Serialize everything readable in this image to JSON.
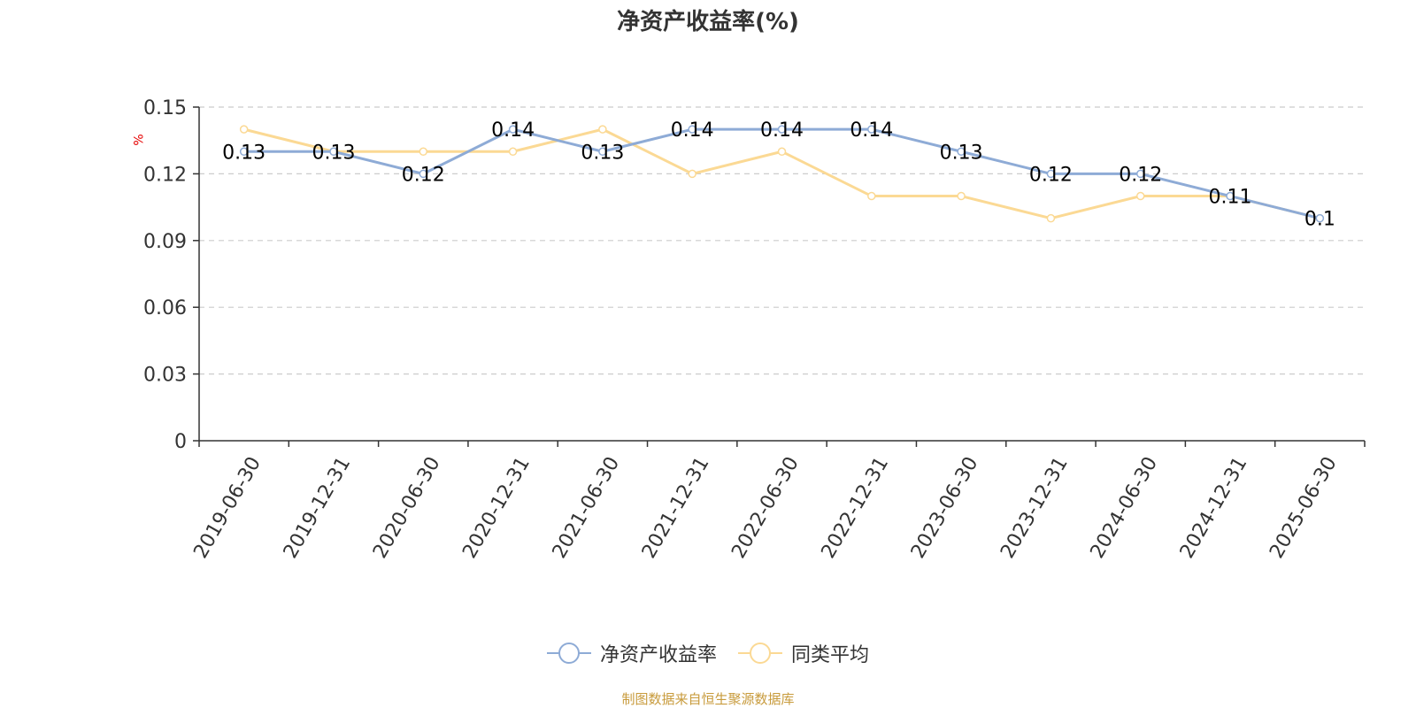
{
  "title": "净资产收益率(%)",
  "y_unit": "%",
  "source": "制图数据来自恒生聚源数据库",
  "colors": {
    "series1": "#8eabd6",
    "series2": "#fbd994",
    "axis": "#333333",
    "grid": "#cccccc",
    "title": "#333333",
    "unit": "#e60000",
    "source": "#c89b3c"
  },
  "chart_data": {
    "type": "line",
    "title": "净资产收益率(%)",
    "ylabel": "%",
    "categories": [
      "2019-06-30",
      "2019-12-31",
      "2020-06-30",
      "2020-12-31",
      "2021-06-30",
      "2021-12-31",
      "2022-06-30",
      "2022-12-31",
      "2023-06-30",
      "2023-12-31",
      "2024-06-30",
      "2024-12-31",
      "2025-06-30"
    ],
    "series": [
      {
        "name": "净资产收益率",
        "values": [
          0.13,
          0.13,
          0.12,
          0.14,
          0.13,
          0.14,
          0.14,
          0.14,
          0.13,
          0.12,
          0.12,
          0.11,
          0.1
        ],
        "labels": [
          "0.13",
          "0.13",
          "0.12",
          "0.14",
          "0.13",
          "0.14",
          "0.14",
          "0.14",
          "0.13",
          "0.12",
          "0.12",
          "0.11",
          "0.1"
        ]
      },
      {
        "name": "同类平均",
        "values": [
          0.14,
          0.13,
          0.13,
          0.13,
          0.14,
          0.12,
          0.13,
          0.11,
          0.11,
          0.1,
          0.11,
          0.11,
          0.1
        ]
      }
    ],
    "y_ticks": [
      "0",
      "0.03",
      "0.06",
      "0.09",
      "0.12",
      "0.15"
    ],
    "ylim": [
      0,
      0.15
    ],
    "grid": true,
    "legend_position": "bottom-center"
  }
}
